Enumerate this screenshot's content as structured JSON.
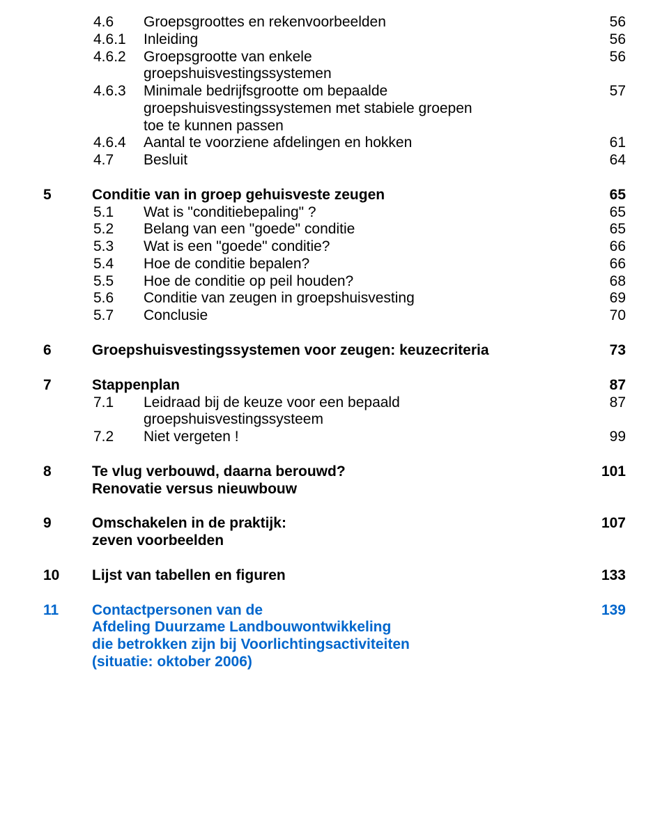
{
  "s4_6": {
    "num": "4.6",
    "text": "Groepsgroottes en rekenvoorbeelden",
    "page": "56"
  },
  "s4_6_1": {
    "num": "4.6.1",
    "text": "Inleiding",
    "page": "56"
  },
  "s4_6_2": {
    "num": "4.6.2",
    "text1": "Groepsgrootte van enkele",
    "text2": "groepshuisvestingssystemen",
    "page": "56"
  },
  "s4_6_3": {
    "num": "4.6.3",
    "text1": "Minimale bedrijfsgrootte om bepaalde",
    "text2": "groepshuisvestingssystemen met stabiele groepen",
    "text3": "toe te kunnen passen",
    "page": "57"
  },
  "s4_6_4": {
    "num": "4.6.4",
    "text": "Aantal te voorziene afdelingen en hokken",
    "page": "61"
  },
  "s4_7": {
    "num": "4.7",
    "text": "Besluit",
    "page": "64"
  },
  "c5": {
    "num": "5",
    "text": "Conditie van in groep gehuisveste zeugen",
    "page": "65"
  },
  "s5_1": {
    "num": "5.1",
    "text": "Wat is \"conditiebepaling\" ?",
    "page": "65"
  },
  "s5_2": {
    "num": "5.2",
    "text": "Belang van een \"goede\" conditie",
    "page": "65"
  },
  "s5_3": {
    "num": "5.3",
    "text": "Wat is een \"goede\" conditie?",
    "page": "66"
  },
  "s5_4": {
    "num": "5.4",
    "text": "Hoe de conditie bepalen?",
    "page": "66"
  },
  "s5_5": {
    "num": "5.5",
    "text": "Hoe de conditie op peil houden?",
    "page": "68"
  },
  "s5_6": {
    "num": "5.6",
    "text": "Conditie van zeugen in groepshuisvesting",
    "page": "69"
  },
  "s5_7": {
    "num": "5.7",
    "text": "Conclusie",
    "page": "70"
  },
  "c6": {
    "num": "6",
    "text": "Groepshuisvestingssystemen voor zeugen: keuzecriteria",
    "page": "73"
  },
  "c7": {
    "num": "7",
    "text": "Stappenplan",
    "page": "87"
  },
  "s7_1": {
    "num": "7.1",
    "text1": "Leidraad bij de keuze voor een bepaald",
    "text2": "groepshuisvestingssysteem",
    "page": "87"
  },
  "s7_2": {
    "num": "7.2",
    "text": "Niet vergeten !",
    "page": "99"
  },
  "c8": {
    "num": "8",
    "text1": "Te vlug verbouwd, daarna berouwd?",
    "text2": "Renovatie versus nieuwbouw",
    "page": "101"
  },
  "c9": {
    "num": "9",
    "text1": "Omschakelen in de praktijk:",
    "text2": "zeven voorbeelden",
    "page": "107"
  },
  "c10": {
    "num": "10",
    "text": "Lijst van tabellen en figuren",
    "page": "133"
  },
  "c11": {
    "num": "11",
    "text1": "Contactpersonen van de",
    "text2": "Afdeling Duurzame Landbouwontwikkeling",
    "text3": "die betrokken zijn bij Voorlichtingsactiviteiten",
    "text4": "(situatie: oktober 2006)",
    "page": "139"
  },
  "colors": {
    "text": "#000000",
    "link": "#0066cc",
    "bg": "#ffffff"
  },
  "font": {
    "family": "Arial",
    "size_pt": 16,
    "bold_chapters": true
  }
}
